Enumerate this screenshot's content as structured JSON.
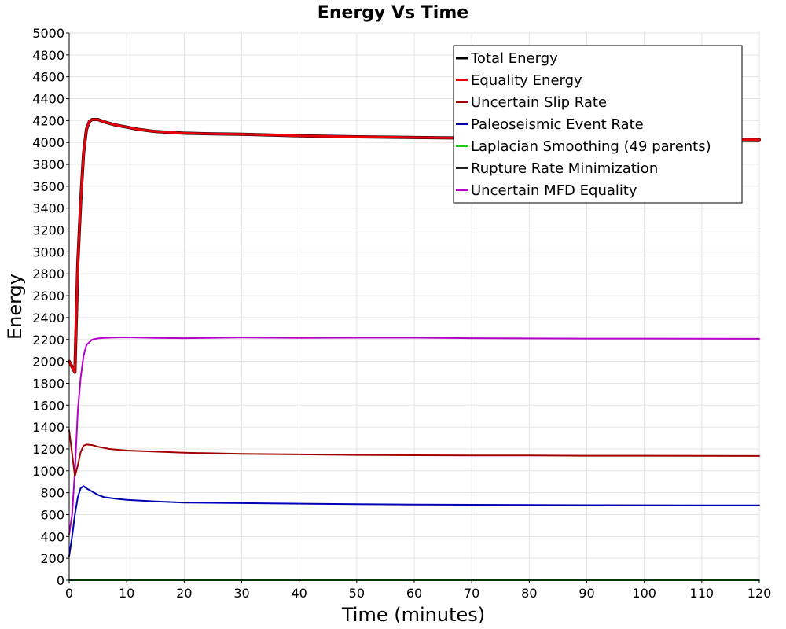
{
  "chart_data": {
    "type": "line",
    "title": "Energy Vs Time",
    "xlabel": "Time (minutes)",
    "ylabel": "Energy",
    "xlim": [
      0,
      120
    ],
    "ylim": [
      0,
      5000
    ],
    "x_ticks": [
      0,
      10,
      20,
      30,
      40,
      50,
      60,
      70,
      80,
      90,
      100,
      110,
      120
    ],
    "y_ticks": [
      0,
      200,
      400,
      600,
      800,
      1000,
      1200,
      1400,
      1600,
      1800,
      2000,
      2200,
      2400,
      2600,
      2800,
      3000,
      3200,
      3400,
      3600,
      3800,
      4000,
      4200,
      4400,
      4600,
      4800,
      5000
    ],
    "grid": true,
    "legend_position": "top-right",
    "series": [
      {
        "name": "Total Energy",
        "color": "#000000",
        "width": 4,
        "x": [
          0,
          1,
          1.5,
          2,
          2.5,
          3,
          3.5,
          4,
          5,
          6,
          8,
          10,
          12,
          15,
          20,
          25,
          30,
          35,
          40,
          50,
          60,
          70,
          80,
          90,
          100,
          110,
          120
        ],
        "y": [
          2000,
          1900,
          2900,
          3450,
          3900,
          4120,
          4190,
          4210,
          4210,
          4190,
          4160,
          4140,
          4120,
          4100,
          4085,
          4078,
          4075,
          4068,
          4060,
          4052,
          4045,
          4040,
          4035,
          4032,
          4030,
          4028,
          4025
        ]
      },
      {
        "name": "Equality Energy",
        "color": "#e8000b",
        "width": 3,
        "x": [
          0,
          1,
          1.5,
          2,
          2.5,
          3,
          3.5,
          4,
          5,
          6,
          8,
          10,
          12,
          15,
          20,
          25,
          30,
          35,
          40,
          50,
          60,
          70,
          80,
          90,
          100,
          110,
          120
        ],
        "y": [
          2000,
          1900,
          2900,
          3450,
          3900,
          4120,
          4190,
          4210,
          4210,
          4190,
          4160,
          4140,
          4120,
          4100,
          4085,
          4078,
          4075,
          4068,
          4060,
          4052,
          4045,
          4040,
          4035,
          4032,
          4030,
          4028,
          4025
        ]
      },
      {
        "name": "Uncertain Slip Rate",
        "color": "#a00000",
        "width": 2,
        "x": [
          0,
          1,
          1.5,
          2,
          2.5,
          3,
          4,
          5,
          7,
          10,
          15,
          20,
          30,
          40,
          50,
          60,
          70,
          80,
          90,
          100,
          110,
          120
        ],
        "y": [
          1370,
          950,
          1050,
          1170,
          1230,
          1240,
          1235,
          1220,
          1200,
          1185,
          1175,
          1165,
          1155,
          1150,
          1145,
          1142,
          1140,
          1140,
          1138,
          1138,
          1137,
          1136
        ]
      },
      {
        "name": "Paleoseismic Event Rate",
        "color": "#0000b4",
        "width": 2,
        "x": [
          0,
          0.5,
          1,
          1.5,
          2,
          2.5,
          3,
          4,
          5,
          6,
          8,
          10,
          15,
          20,
          30,
          40,
          50,
          60,
          70,
          80,
          90,
          100,
          110,
          120
        ],
        "y": [
          220,
          400,
          600,
          760,
          840,
          860,
          840,
          810,
          780,
          760,
          745,
          735,
          720,
          710,
          705,
          700,
          695,
          692,
          690,
          688,
          686,
          685,
          684,
          684
        ]
      },
      {
        "name": "Laplacian Smoothing (49 parents)",
        "color": "#1ec81e",
        "width": 2,
        "x": [
          0,
          120
        ],
        "y": [
          0,
          0
        ]
      },
      {
        "name": "Rupture Rate Minimization",
        "color": "#222222",
        "width": 2,
        "x": [
          0,
          120
        ],
        "y": [
          0,
          0
        ]
      },
      {
        "name": "Uncertain MFD Equality",
        "color": "#b400c8",
        "width": 2,
        "x": [
          0,
          0.5,
          1,
          1.5,
          2,
          2.5,
          3,
          4,
          5,
          6,
          8,
          10,
          15,
          20,
          30,
          40,
          50,
          60,
          70,
          80,
          90,
          100,
          110,
          120
        ],
        "y": [
          420,
          600,
          1000,
          1550,
          1850,
          2050,
          2150,
          2200,
          2210,
          2215,
          2218,
          2220,
          2215,
          2212,
          2218,
          2214,
          2216,
          2216,
          2212,
          2210,
          2208,
          2208,
          2207,
          2206
        ]
      }
    ]
  }
}
